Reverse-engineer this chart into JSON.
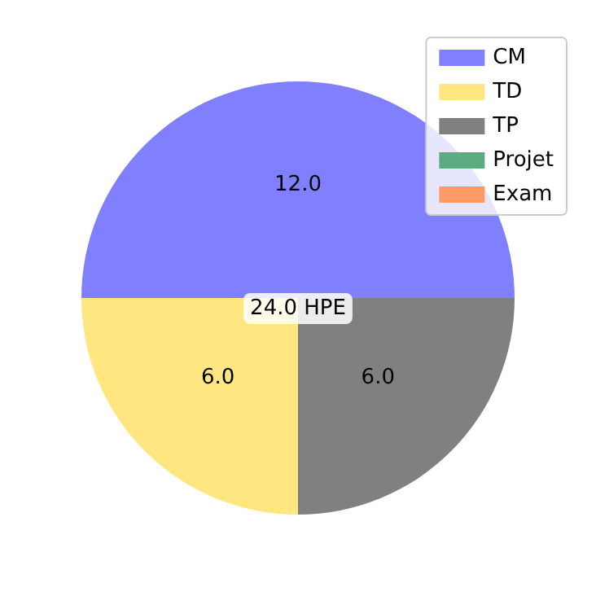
{
  "chart_data": {
    "type": "pie",
    "categories": [
      "CM",
      "TD",
      "TP",
      "Projet",
      "Exam"
    ],
    "values": [
      12,
      6,
      6,
      0,
      0
    ],
    "colors": [
      "#8080ff",
      "#ffe680",
      "#808080",
      "#5aab7f",
      "#ff9966"
    ],
    "value_labels": [
      "12.0",
      "6.0",
      "6.0",
      null,
      null
    ],
    "annotations": [
      "24.0 HPE"
    ],
    "legend": "top right"
  }
}
